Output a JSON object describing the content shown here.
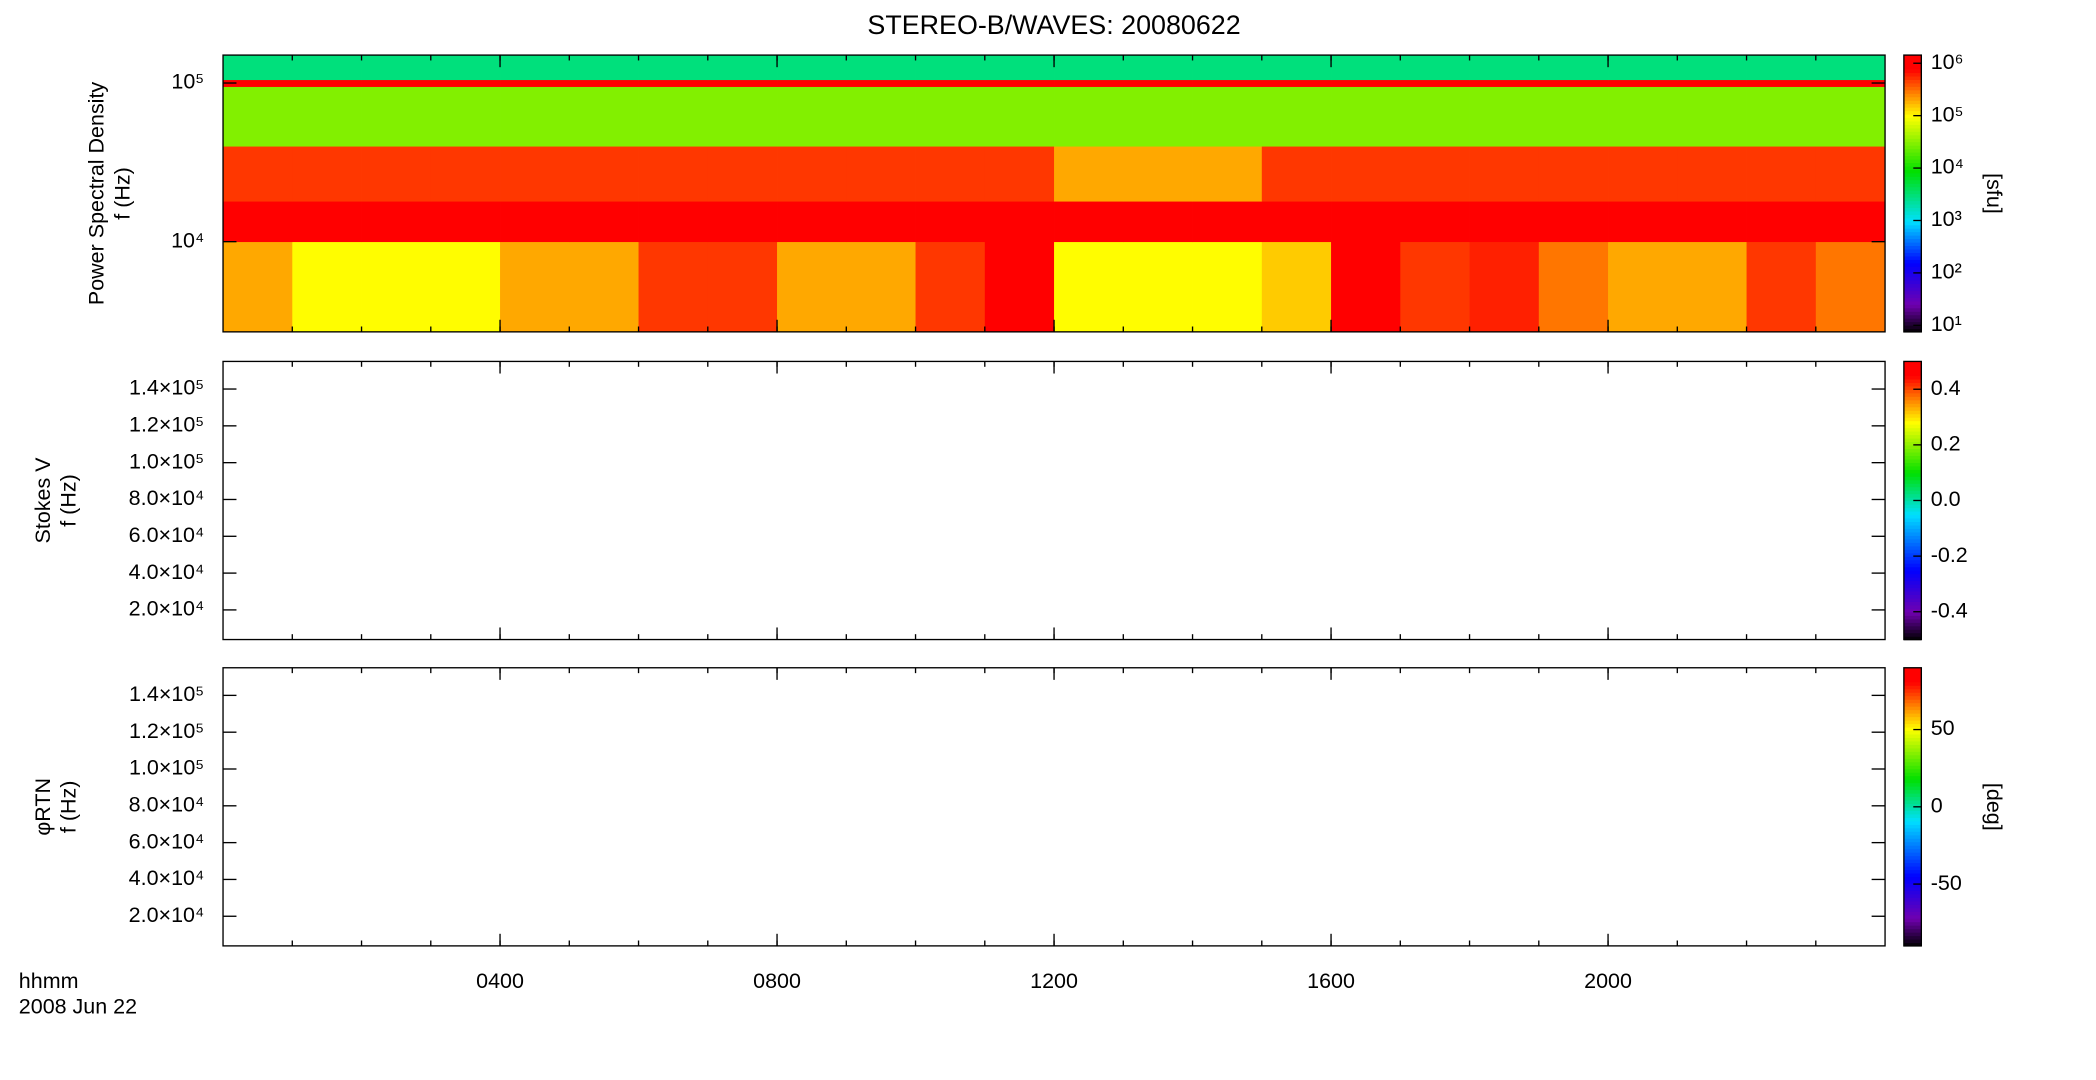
{
  "chart_data": [
    {
      "type": "heatmap",
      "title": "STEREO-B/WAVES: 20080622",
      "ylabel_lines": [
        "Power Spectral Density",
        "f (Hz)"
      ],
      "zlabel": "[sfu]",
      "xlim": [
        0,
        24
      ],
      "ylim": [
        2700,
        150000
      ],
      "ylog": true,
      "yticks": [
        {
          "value": 10000,
          "label": "10⁴"
        },
        {
          "value": 100000,
          "label": "10⁵"
        }
      ],
      "x_edges": [
        0,
        1,
        2,
        3,
        4,
        5,
        6,
        7,
        8,
        9,
        10,
        11,
        12,
        13,
        14,
        15,
        16,
        17,
        18,
        19,
        20,
        21,
        22,
        23,
        24
      ],
      "y_edges": [
        2700,
        10000,
        18000,
        40000,
        95000,
        105000,
        150000
      ],
      "z": [
        [
          200000,
          100000,
          100000,
          100000,
          200000,
          200000,
          500000,
          500000,
          200000,
          200000,
          500000,
          800000,
          100000,
          100000,
          100000,
          150000,
          800000,
          500000,
          600000,
          300000,
          200000,
          200000,
          500000,
          300000
        ],
        [
          1000000,
          1000000,
          1000000,
          1000000,
          1000000,
          1000000,
          1000000,
          1000000,
          1000000,
          1000000,
          1000000,
          1000000,
          1000000,
          1000000,
          1000000,
          1000000,
          1000000,
          1000000,
          1000000,
          1000000,
          1000000,
          1000000,
          1000000,
          1000000
        ],
        [
          500000,
          500000,
          500000,
          500000,
          500000,
          500000,
          500000,
          500000,
          500000,
          500000,
          500000,
          500000,
          200000,
          200000,
          200000,
          500000,
          500000,
          500000,
          500000,
          500000,
          500000,
          500000,
          500000,
          500000
        ],
        [
          30000,
          30000,
          30000,
          30000,
          30000,
          30000,
          30000,
          30000,
          30000,
          30000,
          30000,
          30000,
          30000,
          30000,
          30000,
          30000,
          30000,
          30000,
          30000,
          30000,
          30000,
          30000,
          30000,
          30000
        ],
        [
          1000000,
          1000000,
          1000000,
          1000000,
          1000000,
          1000000,
          1000000,
          1000000,
          1000000,
          1000000,
          1000000,
          1000000,
          1000000,
          1000000,
          1000000,
          1000000,
          1000000,
          1000000,
          1000000,
          1000000,
          1000000,
          1000000,
          1000000,
          1000000
        ],
        [
          3000,
          3000,
          3000,
          3000,
          3000,
          3000,
          3000,
          3000,
          3000,
          3000,
          3000,
          3000,
          3000,
          3000,
          3000,
          3000,
          3000,
          3000,
          3000,
          3000,
          3000,
          3000,
          3000,
          3000
        ]
      ],
      "zlim": [
        7.5,
        1430000
      ],
      "zlog": true,
      "zticks": [
        {
          "value": 10,
          "label": "10¹"
        },
        {
          "value": 100,
          "label": "10²"
        },
        {
          "value": 1000,
          "label": "10³"
        },
        {
          "value": 10000,
          "label": "10⁴"
        },
        {
          "value": 100000,
          "label": "10⁵"
        },
        {
          "value": 1000000,
          "label": "10⁶"
        }
      ],
      "colormap": [
        {
          "pos": 0,
          "color": "#000000"
        },
        {
          "pos": 0.1,
          "color": "#7000b0"
        },
        {
          "pos": 0.25,
          "color": "#0000ff"
        },
        {
          "pos": 0.4,
          "color": "#00e0ff"
        },
        {
          "pos": 0.58,
          "color": "#00e000"
        },
        {
          "pos": 0.78,
          "color": "#ffff00"
        },
        {
          "pos": 0.95,
          "color": "#ff0000"
        },
        {
          "pos": 1,
          "color": "#ff0000"
        }
      ]
    },
    {
      "type": "heatmap",
      "ylabel_lines": [
        "Stokes V",
        "f (Hz)"
      ],
      "xlim": [
        0,
        24
      ],
      "ylim": [
        3900,
        155000
      ],
      "ylog": false,
      "yticks": [
        {
          "value": 20000,
          "label": "2.0×10⁴"
        },
        {
          "value": 40000,
          "label": "4.0×10⁴"
        },
        {
          "value": 60000,
          "label": "6.0×10⁴"
        },
        {
          "value": 80000,
          "label": "8.0×10⁴"
        },
        {
          "value": 100000,
          "label": "1.0×10⁵"
        },
        {
          "value": 120000,
          "label": "1.2×10⁵"
        },
        {
          "value": 140000,
          "label": "1.4×10⁵"
        }
      ],
      "zlim": [
        -0.5,
        0.5
      ],
      "zlog": false,
      "zticks": [
        {
          "value": -0.4,
          "label": "-0.4"
        },
        {
          "value": -0.2,
          "label": "-0.2"
        },
        {
          "value": 0,
          "label": "0.0"
        },
        {
          "value": 0.2,
          "label": "0.2"
        },
        {
          "value": 0.4,
          "label": "0.4"
        }
      ],
      "colormap": [
        {
          "pos": 0,
          "color": "#000000"
        },
        {
          "pos": 0.1,
          "color": "#7000b0"
        },
        {
          "pos": 0.25,
          "color": "#0000ff"
        },
        {
          "pos": 0.45,
          "color": "#00e0ff"
        },
        {
          "pos": 0.6,
          "color": "#00e000"
        },
        {
          "pos": 0.78,
          "color": "#ffff00"
        },
        {
          "pos": 0.95,
          "color": "#ff0000"
        },
        {
          "pos": 1,
          "color": "#ff0000"
        }
      ]
    },
    {
      "type": "heatmap",
      "ylabel_lines": [
        "φRTN",
        "f (Hz)"
      ],
      "zlabel": "[deg]",
      "xlim": [
        0,
        24
      ],
      "xticks": [
        {
          "value": 4,
          "label": "0400"
        },
        {
          "value": 8,
          "label": "0800"
        },
        {
          "value": 12,
          "label": "1200"
        },
        {
          "value": 16,
          "label": "1600"
        },
        {
          "value": 20,
          "label": "2000"
        }
      ],
      "x_label_lines": [
        "hhmm",
        "2008 Jun 22"
      ],
      "ylim": [
        3900,
        155000
      ],
      "ylog": false,
      "yticks": [
        {
          "value": 20000,
          "label": "2.0×10⁴"
        },
        {
          "value": 40000,
          "label": "4.0×10⁴"
        },
        {
          "value": 60000,
          "label": "6.0×10⁴"
        },
        {
          "value": 80000,
          "label": "8.0×10⁴"
        },
        {
          "value": 100000,
          "label": "1.0×10⁵"
        },
        {
          "value": 120000,
          "label": "1.2×10⁵"
        },
        {
          "value": 140000,
          "label": "1.4×10⁵"
        }
      ],
      "zlim": [
        -90,
        90
      ],
      "zlog": false,
      "zticks": [
        {
          "value": -50,
          "label": "-50"
        },
        {
          "value": 0,
          "label": "0"
        },
        {
          "value": 50,
          "label": "50"
        }
      ],
      "colormap": [
        {
          "pos": 0,
          "color": "#000000"
        },
        {
          "pos": 0.1,
          "color": "#7000b0"
        },
        {
          "pos": 0.25,
          "color": "#0000ff"
        },
        {
          "pos": 0.45,
          "color": "#00e0ff"
        },
        {
          "pos": 0.6,
          "color": "#00e000"
        },
        {
          "pos": 0.78,
          "color": "#ffff00"
        },
        {
          "pos": 0.95,
          "color": "#ff0000"
        },
        {
          "pos": 1,
          "color": "#ff0000"
        }
      ]
    }
  ]
}
